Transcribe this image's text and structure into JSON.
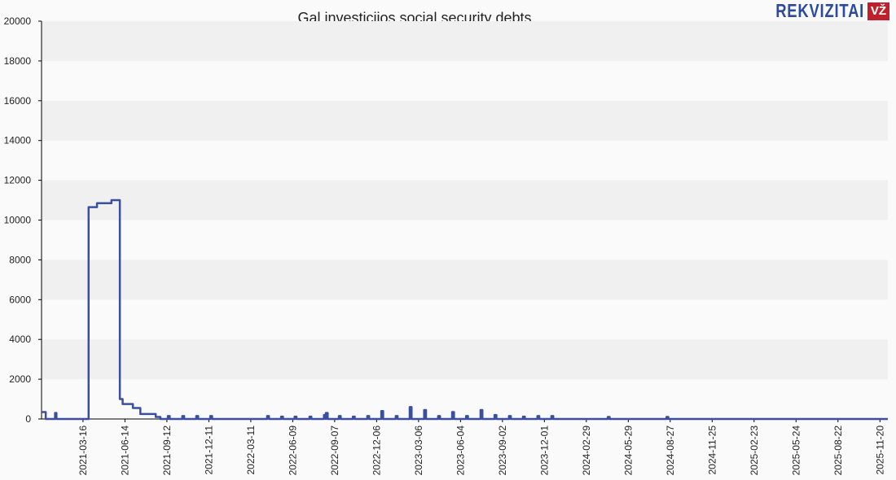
{
  "chart_data": {
    "type": "line",
    "title": "Gal investicijos social security debts",
    "xlabel": "",
    "ylabel": "",
    "xlim": [
      "2020-12-17",
      "2025-12-07"
    ],
    "ylim": [
      0,
      20000
    ],
    "yticks": [
      0,
      2000,
      4000,
      6000,
      8000,
      10000,
      12000,
      14000,
      16000,
      18000,
      20000
    ],
    "xticks": [
      "2021-03-16",
      "2021-06-14",
      "2021-09-12",
      "2021-12-11",
      "2022-03-11",
      "2022-06-09",
      "2022-09-07",
      "2022-12-06",
      "2023-03-06",
      "2023-06-04",
      "2023-09-02",
      "2023-12-01",
      "2024-02-29",
      "2024-05-29",
      "2024-08-27",
      "2024-11-25",
      "2025-02-23",
      "2025-05-24",
      "2025-08-22",
      "2025-11-20"
    ],
    "grid": "horizontal alternating bands",
    "line_color": "#3a4fa0",
    "band_colors": [
      "#fafafa",
      "#f0f0f0"
    ],
    "steps": [
      [
        "2020-12-17",
        350
      ],
      [
        "2020-12-26",
        0
      ],
      [
        "2021-01-15",
        300
      ],
      [
        "2021-01-18",
        0
      ],
      [
        "2021-03-28",
        10650
      ],
      [
        "2021-04-15",
        10850
      ],
      [
        "2021-05-16",
        11000
      ],
      [
        "2021-06-03",
        1000
      ],
      [
        "2021-06-09",
        750
      ],
      [
        "2021-07-01",
        550
      ],
      [
        "2021-07-17",
        250
      ],
      [
        "2021-08-19",
        100
      ],
      [
        "2021-08-29",
        0
      ]
    ],
    "spikes": [
      [
        "2021-09-14",
        150
      ],
      [
        "2021-10-15",
        150
      ],
      [
        "2021-11-14",
        150
      ],
      [
        "2021-12-14",
        150
      ],
      [
        "2022-04-15",
        150
      ],
      [
        "2022-05-15",
        120
      ],
      [
        "2022-06-13",
        120
      ],
      [
        "2022-07-15",
        120
      ],
      [
        "2022-08-15",
        200
      ],
      [
        "2022-08-19",
        300
      ],
      [
        "2022-09-16",
        150
      ],
      [
        "2022-10-16",
        120
      ],
      [
        "2022-11-16",
        150
      ],
      [
        "2022-12-16",
        400
      ],
      [
        "2023-01-16",
        150
      ],
      [
        "2023-02-15",
        600
      ],
      [
        "2023-03-18",
        450
      ],
      [
        "2023-04-17",
        150
      ],
      [
        "2023-05-17",
        350
      ],
      [
        "2023-06-16",
        150
      ],
      [
        "2023-07-17",
        450
      ],
      [
        "2023-08-16",
        200
      ],
      [
        "2023-09-16",
        150
      ],
      [
        "2023-10-16",
        120
      ],
      [
        "2023-11-16",
        150
      ],
      [
        "2023-12-16",
        150
      ],
      [
        "2024-04-15",
        100
      ],
      [
        "2024-08-19",
        100
      ]
    ]
  },
  "logo": {
    "text": "REKVIZITAI",
    "badge": "VŽ"
  }
}
